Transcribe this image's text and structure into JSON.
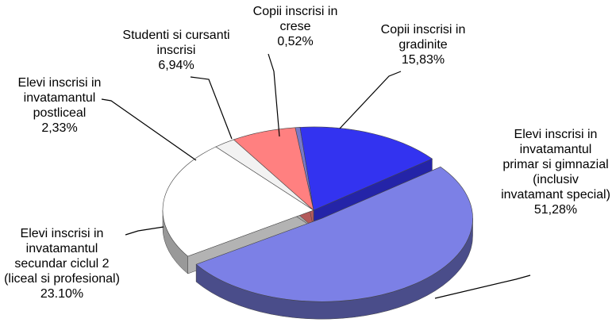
{
  "chart_data": {
    "type": "pie3d",
    "categories": [
      "Copii inscrisi in crese",
      "Copii inscrisi in gradinite",
      "Elevi inscrisi in invatamantul primar si gimnazial (inclusiv invatamant special)",
      "Elevi inscrisi in invatamantul secundar ciclul 2 (liceal si profesional)",
      "Elevi inscrisi in invatamantul postliceal",
      "Studenti si cursanti inscrisi"
    ],
    "values": [
      0.52,
      15.83,
      51.28,
      23.1,
      2.33,
      6.94
    ],
    "value_labels": [
      "0,52%",
      "15,83%",
      "51,28%",
      "23.10%",
      "2,33%",
      "6,94%"
    ],
    "colors": [
      "#7878c8",
      "#3333f0",
      "#7c80e6",
      "#ffffff",
      "#f2f2f2",
      "#ff8080"
    ]
  }
}
